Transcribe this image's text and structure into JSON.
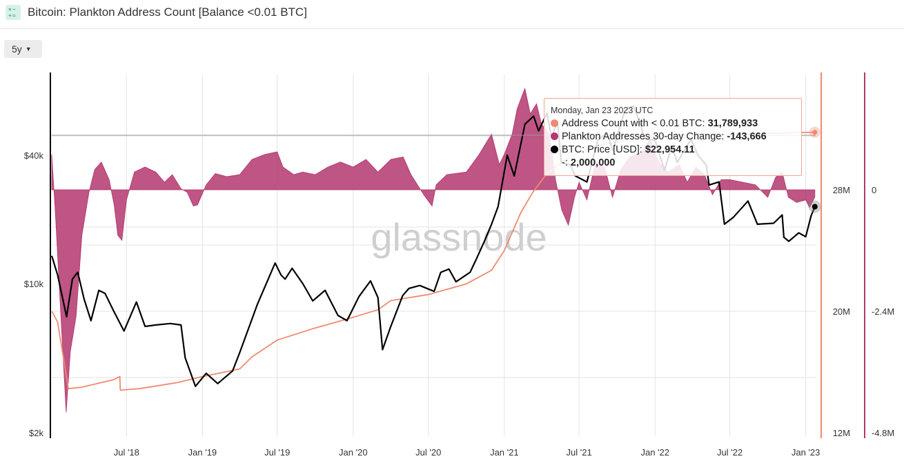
{
  "header": {
    "icon_text": "×−\n+=",
    "title": "Bitcoin: Plankton Address Count [Balance <0.01 BTC]"
  },
  "controls": {
    "range_label": "5y"
  },
  "watermark": "glassnode",
  "colors": {
    "address_count": "#f08a6e",
    "change_bars": "#b3376e",
    "price": "#000000",
    "grid": "#e3e3e3"
  },
  "chart_data": {
    "type": "line",
    "x_tick_labels": [
      "Jul '18",
      "Jan '19",
      "Jul '19",
      "Jan '20",
      "Jul '20",
      "Jan '21",
      "Jul '21",
      "Jan '22",
      "Jul '22",
      "Jan '23"
    ],
    "x_range": [
      "2018-01-01",
      "2023-01-25"
    ],
    "axes": {
      "price": {
        "scale": "log",
        "ticks": [
          "$2k",
          "$10k",
          "$40k"
        ],
        "tick_values": [
          2000,
          10000,
          40000
        ]
      },
      "address_count": {
        "ticks": [
          "12M",
          "20M",
          "28M"
        ],
        "tick_values": [
          12000000,
          20000000,
          28000000
        ]
      },
      "change": {
        "ticks": [
          "-4.8M",
          "-2.4M",
          "0"
        ],
        "tick_values": [
          -4800000,
          -2400000,
          0
        ]
      }
    },
    "series": [
      {
        "name": "BTC: Price [USD]",
        "axis": "price",
        "color": "#000000",
        "points": [
          [
            "2018-01-01",
            13500
          ],
          [
            "2018-01-15",
            11000
          ],
          [
            "2018-02-06",
            7000
          ],
          [
            "2018-02-20",
            10500
          ],
          [
            "2018-03-05",
            11300
          ],
          [
            "2018-03-20",
            8500
          ],
          [
            "2018-04-06",
            6700
          ],
          [
            "2018-04-25",
            9300
          ],
          [
            "2018-05-10",
            9000
          ],
          [
            "2018-05-30",
            7500
          ],
          [
            "2018-06-25",
            6000
          ],
          [
            "2018-07-25",
            8200
          ],
          [
            "2018-08-15",
            6300
          ],
          [
            "2018-09-10",
            6400
          ],
          [
            "2018-10-15",
            6500
          ],
          [
            "2018-11-10",
            6400
          ],
          [
            "2018-11-20",
            4500
          ],
          [
            "2018-12-15",
            3300
          ],
          [
            "2019-01-10",
            3800
          ],
          [
            "2019-02-07",
            3400
          ],
          [
            "2019-03-15",
            3900
          ],
          [
            "2019-04-02",
            4800
          ],
          [
            "2019-05-14",
            8000
          ],
          [
            "2019-06-26",
            12500
          ],
          [
            "2019-07-10",
            11000
          ],
          [
            "2019-07-20",
            10500
          ],
          [
            "2019-08-06",
            11800
          ],
          [
            "2019-09-01",
            10000
          ],
          [
            "2019-09-25",
            8300
          ],
          [
            "2019-10-25",
            9300
          ],
          [
            "2019-11-25",
            7100
          ],
          [
            "2019-12-17",
            6700
          ],
          [
            "2020-01-15",
            8700
          ],
          [
            "2020-02-12",
            10300
          ],
          [
            "2020-03-01",
            8600
          ],
          [
            "2020-03-12",
            4900
          ],
          [
            "2020-04-01",
            6300
          ],
          [
            "2020-04-30",
            8800
          ],
          [
            "2020-05-15",
            9500
          ],
          [
            "2020-06-10",
            9800
          ],
          [
            "2020-07-15",
            9200
          ],
          [
            "2020-07-31",
            11300
          ],
          [
            "2020-08-20",
            11700
          ],
          [
            "2020-09-06",
            10200
          ],
          [
            "2020-10-10",
            11300
          ],
          [
            "2020-10-25",
            13000
          ],
          [
            "2020-11-15",
            16000
          ],
          [
            "2020-12-01",
            19000
          ],
          [
            "2020-12-17",
            23000
          ],
          [
            "2021-01-08",
            40000
          ],
          [
            "2021-01-25",
            32000
          ],
          [
            "2021-02-20",
            56000
          ],
          [
            "2021-03-13",
            61000
          ],
          [
            "2021-03-25",
            52000
          ],
          [
            "2021-04-14",
            63000
          ],
          [
            "2021-04-25",
            49000
          ],
          [
            "2021-05-10",
            57000
          ],
          [
            "2021-05-19",
            37000
          ],
          [
            "2021-06-10",
            36000
          ],
          [
            "2021-06-22",
            32000
          ],
          [
            "2021-07-20",
            30000
          ],
          [
            "2021-08-15",
            47000
          ],
          [
            "2021-09-06",
            51000
          ],
          [
            "2021-09-21",
            42000
          ],
          [
            "2021-10-20",
            65000
          ],
          [
            "2021-11-10",
            68000
          ],
          [
            "2021-11-28",
            55000
          ],
          [
            "2021-12-05",
            48000
          ],
          [
            "2022-01-01",
            47000
          ],
          [
            "2022-01-24",
            34000
          ],
          [
            "2022-02-10",
            44000
          ],
          [
            "2022-02-24",
            37000
          ],
          [
            "2022-03-29",
            47500
          ],
          [
            "2022-04-15",
            40000
          ],
          [
            "2022-05-05",
            36000
          ],
          [
            "2022-05-12",
            29000
          ],
          [
            "2022-06-05",
            30000
          ],
          [
            "2022-06-18",
            19000
          ],
          [
            "2022-07-10",
            20500
          ],
          [
            "2022-08-14",
            24400
          ],
          [
            "2022-09-06",
            19000
          ],
          [
            "2022-10-15",
            19200
          ],
          [
            "2022-11-05",
            21000
          ],
          [
            "2022-11-09",
            16500
          ],
          [
            "2022-11-21",
            15800
          ],
          [
            "2022-12-15",
            17300
          ],
          [
            "2023-01-01",
            16600
          ],
          [
            "2023-01-14",
            20800
          ],
          [
            "2023-01-23",
            22954.11
          ]
        ]
      },
      {
        "name": "Address Count with < 0.01 BTC",
        "axis": "address_count",
        "color": "#f08a6e",
        "points": [
          [
            "2018-01-01",
            20000000
          ],
          [
            "2018-01-15",
            19300000
          ],
          [
            "2018-02-01",
            16500000
          ],
          [
            "2018-02-10",
            14900000
          ],
          [
            "2018-03-15",
            15000000
          ],
          [
            "2018-05-01",
            15300000
          ],
          [
            "2018-06-01",
            15500000
          ],
          [
            "2018-06-15",
            15700000
          ],
          [
            "2018-06-16",
            14800000
          ],
          [
            "2018-08-01",
            14900000
          ],
          [
            "2018-11-01",
            15300000
          ],
          [
            "2019-01-01",
            15700000
          ],
          [
            "2019-04-01",
            16200000
          ],
          [
            "2019-05-01",
            17000000
          ],
          [
            "2019-07-01",
            18100000
          ],
          [
            "2019-10-01",
            18900000
          ],
          [
            "2020-01-01",
            19600000
          ],
          [
            "2020-03-01",
            20100000
          ],
          [
            "2020-04-01",
            20700000
          ],
          [
            "2020-07-01",
            21100000
          ],
          [
            "2020-10-01",
            21800000
          ],
          [
            "2020-12-01",
            22700000
          ],
          [
            "2021-01-01",
            24000000
          ],
          [
            "2021-02-10",
            26500000
          ],
          [
            "2021-03-10",
            27800000
          ],
          [
            "2021-04-15",
            29100000
          ],
          [
            "2021-05-20",
            29800000
          ],
          [
            "2021-07-01",
            30500000
          ],
          [
            "2021-09-01",
            31000000
          ],
          [
            "2021-11-01",
            31300000
          ],
          [
            "2022-01-01",
            31500000
          ],
          [
            "2022-04-01",
            31700000
          ],
          [
            "2022-06-15",
            31600000
          ],
          [
            "2022-09-01",
            31700000
          ],
          [
            "2023-01-23",
            31789933
          ]
        ]
      },
      {
        "name": "Plankton Addresses 30-day Change",
        "axis": "change",
        "color": "#b3376e",
        "points": [
          [
            "2018-01-01",
            700000
          ],
          [
            "2018-01-10",
            -500000
          ],
          [
            "2018-01-25",
            -2800000
          ],
          [
            "2018-02-05",
            -4400000
          ],
          [
            "2018-02-15",
            -3200000
          ],
          [
            "2018-03-01",
            -2500000
          ],
          [
            "2018-03-15",
            -900000
          ],
          [
            "2018-04-01",
            -50000
          ],
          [
            "2018-04-15",
            400000
          ],
          [
            "2018-05-01",
            550000
          ],
          [
            "2018-05-20",
            200000
          ],
          [
            "2018-06-01",
            -300000
          ],
          [
            "2018-06-10",
            -900000
          ],
          [
            "2018-06-20",
            -1000000
          ],
          [
            "2018-07-01",
            -200000
          ],
          [
            "2018-07-20",
            350000
          ],
          [
            "2018-08-15",
            450000
          ],
          [
            "2018-09-10",
            350000
          ],
          [
            "2018-10-01",
            150000
          ],
          [
            "2018-10-20",
            300000
          ],
          [
            "2018-11-10",
            20000
          ],
          [
            "2018-11-25",
            -50000
          ],
          [
            "2018-12-10",
            -320000
          ],
          [
            "2018-12-20",
            -300000
          ],
          [
            "2019-01-10",
            100000
          ],
          [
            "2019-02-01",
            320000
          ],
          [
            "2019-03-01",
            260000
          ],
          [
            "2019-04-01",
            300000
          ],
          [
            "2019-05-01",
            600000
          ],
          [
            "2019-06-01",
            700000
          ],
          [
            "2019-07-01",
            750000
          ],
          [
            "2019-07-15",
            450000
          ],
          [
            "2019-08-10",
            300000
          ],
          [
            "2019-09-01",
            350000
          ],
          [
            "2019-10-01",
            300000
          ],
          [
            "2019-11-01",
            450000
          ],
          [
            "2019-12-01",
            550000
          ],
          [
            "2020-01-01",
            450000
          ],
          [
            "2020-02-01",
            600000
          ],
          [
            "2020-03-01",
            350000
          ],
          [
            "2020-04-01",
            600000
          ],
          [
            "2020-05-01",
            650000
          ],
          [
            "2020-05-20",
            300000
          ],
          [
            "2020-06-20",
            -100000
          ],
          [
            "2020-07-10",
            -320000
          ],
          [
            "2020-07-20",
            100000
          ],
          [
            "2020-08-15",
            300000
          ],
          [
            "2020-10-01",
            350000
          ],
          [
            "2020-11-01",
            700000
          ],
          [
            "2020-12-01",
            1100000
          ],
          [
            "2020-12-20",
            500000
          ],
          [
            "2021-01-01",
            700000
          ],
          [
            "2021-01-20",
            1100000
          ],
          [
            "2021-02-01",
            1600000
          ],
          [
            "2021-02-15",
            1900000
          ],
          [
            "2021-02-20",
            2000000
          ],
          [
            "2021-03-05",
            1500000
          ],
          [
            "2021-03-20",
            1700000
          ],
          [
            "2021-04-01",
            1300000
          ],
          [
            "2021-04-20",
            1100000
          ],
          [
            "2021-05-05",
            200000
          ],
          [
            "2021-05-20",
            -400000
          ],
          [
            "2021-06-05",
            -700000
          ],
          [
            "2021-06-20",
            -150000
          ],
          [
            "2021-07-01",
            150000
          ],
          [
            "2021-07-20",
            -200000
          ],
          [
            "2021-08-10",
            550000
          ],
          [
            "2021-09-01",
            450000
          ],
          [
            "2021-09-20",
            -150000
          ],
          [
            "2021-10-10",
            400000
          ],
          [
            "2021-11-01",
            650000
          ],
          [
            "2021-12-01",
            750000
          ],
          [
            "2021-12-20",
            1000000
          ],
          [
            "2022-01-10",
            550000
          ],
          [
            "2022-02-01",
            350000
          ],
          [
            "2022-03-01",
            500000
          ],
          [
            "2022-03-20",
            150000
          ],
          [
            "2022-04-10",
            450000
          ],
          [
            "2022-05-01",
            300000
          ],
          [
            "2022-05-20",
            -100000
          ],
          [
            "2022-06-10",
            200000
          ],
          [
            "2022-07-01",
            200000
          ],
          [
            "2022-08-01",
            150000
          ],
          [
            "2022-09-01",
            100000
          ],
          [
            "2022-10-01",
            -150000
          ],
          [
            "2022-10-20",
            250000
          ],
          [
            "2022-11-05",
            350000
          ],
          [
            "2022-11-20",
            -150000
          ],
          [
            "2022-12-10",
            -250000
          ],
          [
            "2023-01-01",
            -200000
          ],
          [
            "2023-01-10",
            -350000
          ],
          [
            "2023-01-23",
            -143666
          ]
        ]
      }
    ],
    "tooltip": {
      "date": "Monday, Jan 23 2023 UTC",
      "rows": [
        {
          "label": "Address Count with < 0.01 BTC: ",
          "value": "31,789,933",
          "color": "#f08a6e"
        },
        {
          "label": "Plankton Addresses 30-day Change: ",
          "value": "-143,666",
          "color": "#b3376e"
        },
        {
          "label": "BTC: Price [USD]: ",
          "value": "$22,954.11",
          "color": "#000000"
        },
        {
          "label": "-: ",
          "value": "2,000,000",
          "color": ""
        }
      ]
    }
  }
}
